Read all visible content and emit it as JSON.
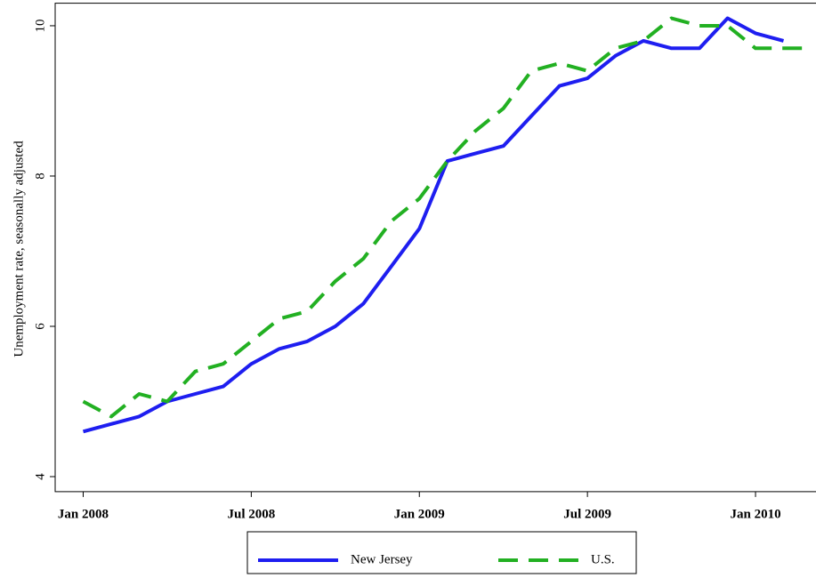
{
  "chart_data": {
    "type": "line",
    "y_label": "Unemployment rate, seasonally adjusted",
    "x": [
      "2008-01",
      "2008-02",
      "2008-03",
      "2008-04",
      "2008-05",
      "2008-06",
      "2008-07",
      "2008-08",
      "2008-09",
      "2008-10",
      "2008-11",
      "2008-12",
      "2009-01",
      "2009-02",
      "2009-03",
      "2009-04",
      "2009-05",
      "2009-06",
      "2009-07",
      "2009-08",
      "2009-09",
      "2009-10",
      "2009-11",
      "2009-12",
      "2010-01",
      "2010-02",
      "2010-03"
    ],
    "series": [
      {
        "name": "New Jersey",
        "color": "#1e1ef0",
        "line_style": "solid",
        "values": [
          4.6,
          4.7,
          4.8,
          5.0,
          5.1,
          5.2,
          5.5,
          5.7,
          5.8,
          6.0,
          6.3,
          6.8,
          7.3,
          8.2,
          8.3,
          8.4,
          8.8,
          9.2,
          9.3,
          9.6,
          9.8,
          9.7,
          9.7,
          10.1,
          9.9,
          9.8,
          null
        ]
      },
      {
        "name": "U.S.",
        "color": "#22b022",
        "line_style": "dashed",
        "values": [
          5.0,
          4.8,
          5.1,
          5.0,
          5.4,
          5.5,
          5.8,
          6.1,
          6.2,
          6.6,
          6.9,
          7.4,
          7.7,
          8.2,
          8.6,
          8.9,
          9.4,
          9.5,
          9.4,
          9.7,
          9.8,
          10.1,
          10.0,
          10.0,
          9.7,
          9.7,
          9.7
        ]
      }
    ],
    "xlim": [
      "2007-12",
      "2010-03"
    ],
    "xticks": [
      {
        "value": "2008-01",
        "label": "Jan 2008"
      },
      {
        "value": "2008-07",
        "label": "Jul 2008"
      },
      {
        "value": "2009-01",
        "label": "Jan 2009"
      },
      {
        "value": "2009-07",
        "label": "Jul 2009"
      },
      {
        "value": "2010-01",
        "label": "Jan 2010"
      }
    ],
    "ylim": [
      3.8,
      10.3
    ],
    "yticks": [
      4,
      6,
      8,
      10
    ],
    "grid": false,
    "legend": "bottom"
  }
}
